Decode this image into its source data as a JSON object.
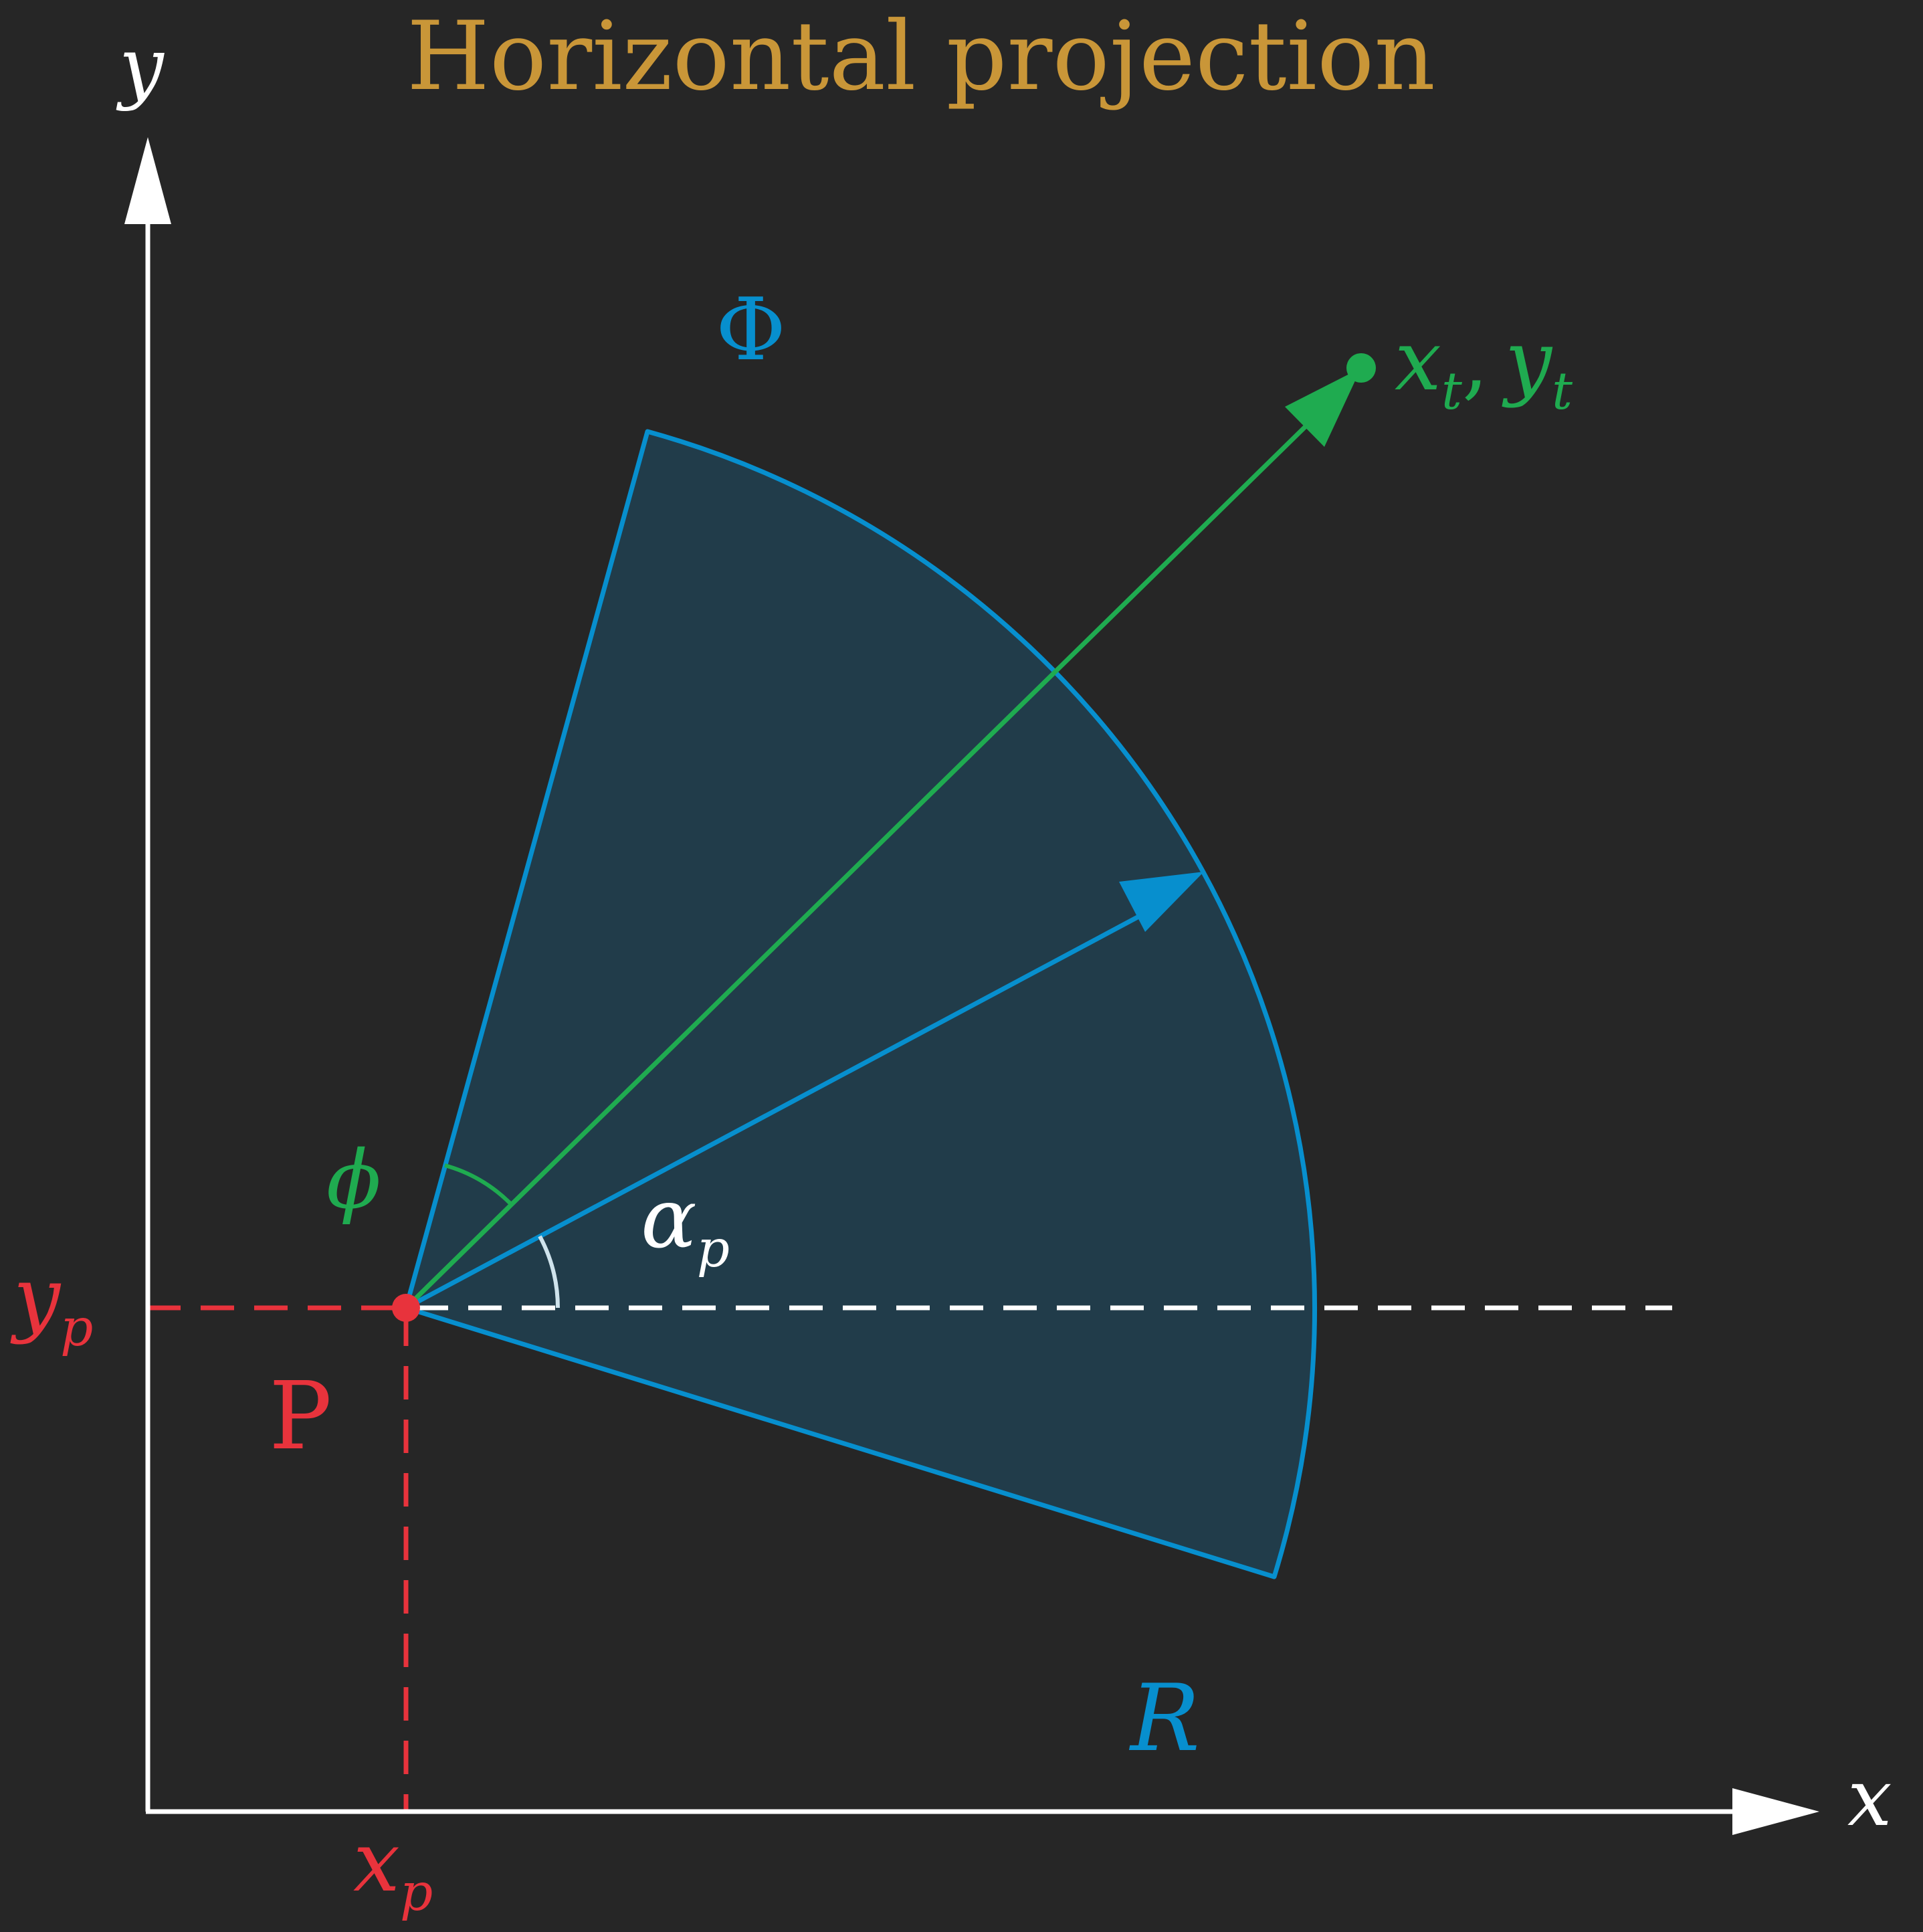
{
  "title": "Horizontal projection",
  "colors": {
    "background": "#262626",
    "title": "#c99638",
    "axes": "#ffffff",
    "point": "#e8333c",
    "sector_stroke": "#078fce",
    "sector_fill": "#213c4a",
    "target": "#1fab50",
    "reference_line": "#ffffff"
  },
  "axes": {
    "x_label": "x",
    "y_label": "y"
  },
  "point": {
    "name": "P",
    "x_label_base": "x",
    "x_label_sub": "p",
    "y_label_base": "y",
    "y_label_sub": "p"
  },
  "target": {
    "x_base": "x",
    "x_sub": "t",
    "separator": ",",
    "y_base": "y",
    "y_sub": "t"
  },
  "sector": {
    "width_label": "Φ",
    "radius_label": "R"
  },
  "angles": {
    "bearing_base": "α",
    "bearing_sub": "p",
    "offset_label": "ϕ"
  }
}
